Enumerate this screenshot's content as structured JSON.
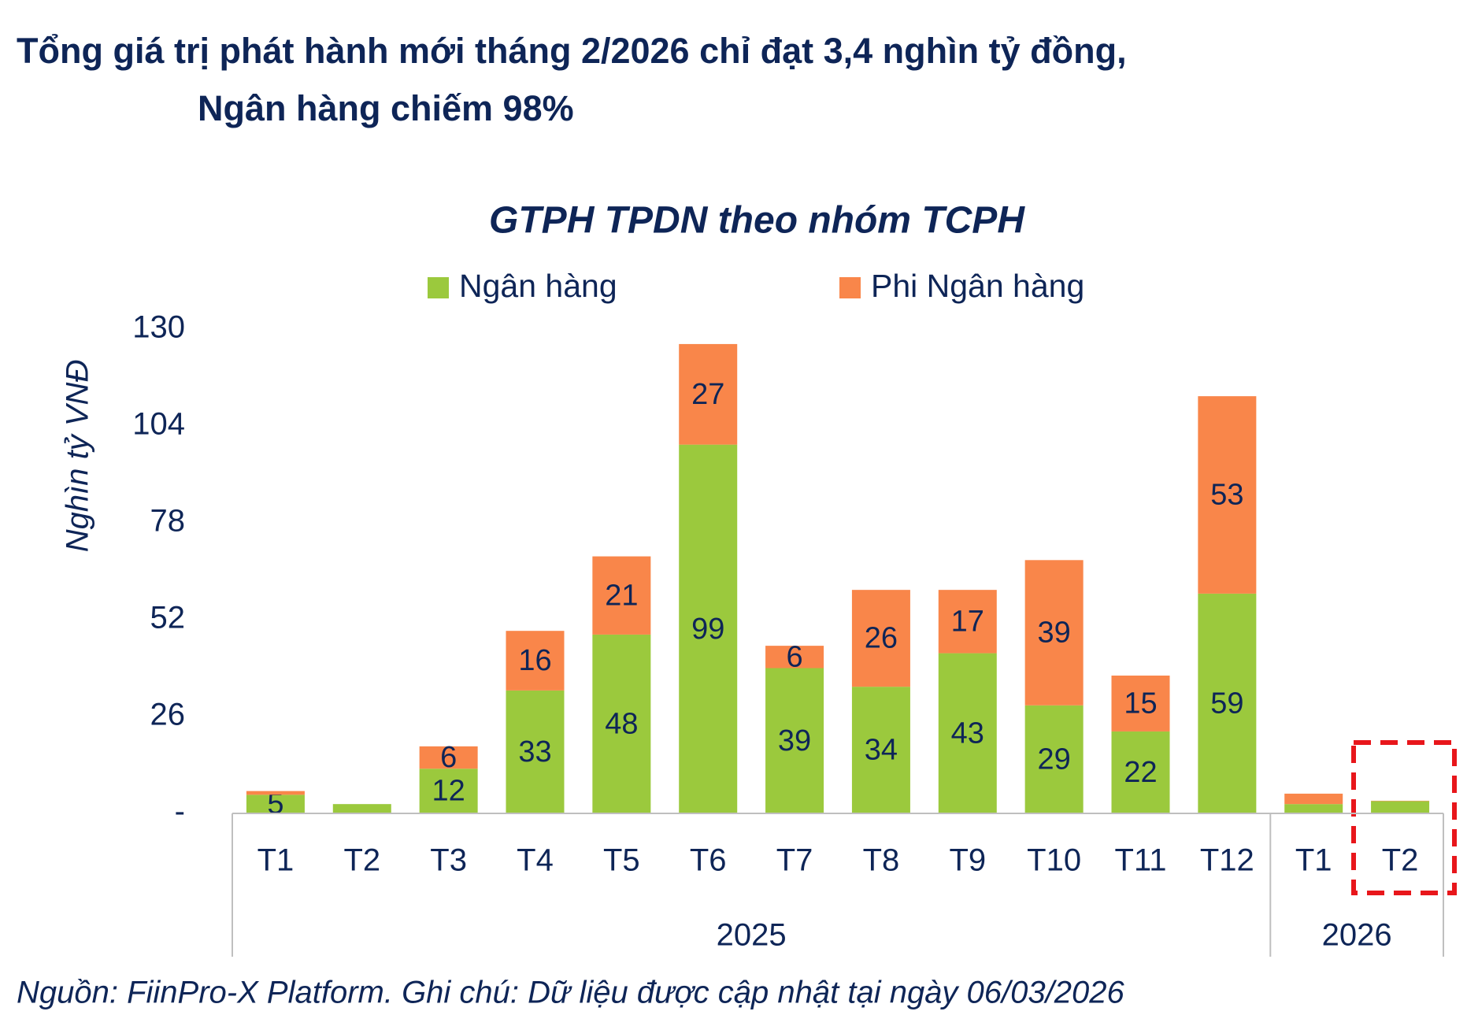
{
  "chart_data": {
    "type": "stacked_bar",
    "title": [
      "Tổng giá trị phát hành mới tháng 2/2026 chỉ đạt 3,4 nghìn tỷ đồng,",
      "Ngân hàng chiếm 98%"
    ],
    "subtitle": "GTPH TPDN theo nhóm TCPH",
    "y_label": "Nghìn tỷ VNĐ",
    "source": "Nguồn: FiinPro-X Platform. Ghi chú: Dữ liệu được cập nhật tại ngày 06/03/2026",
    "categories": [
      "T1",
      "T2",
      "T3",
      "T4",
      "T5",
      "T6",
      "T7",
      "T8",
      "T9",
      "T10",
      "T11",
      "T12",
      "T1",
      "T2"
    ],
    "groups": [
      {
        "label": "2025",
        "count": 12
      },
      {
        "label": "2026",
        "count": 2
      }
    ],
    "series": [
      {
        "name": "Ngân hàng",
        "color": "#9bc93d",
        "values": [
          5,
          2.5,
          12,
          33,
          48,
          99,
          39,
          34,
          43,
          29,
          22,
          59,
          2.5,
          3.3
        ],
        "value_labels": [
          "5",
          null,
          "12",
          "33",
          "48",
          "99",
          "39",
          "34",
          "43",
          "29",
          "22",
          "59",
          null,
          null
        ]
      },
      {
        "name": "Phi Ngân hàng",
        "color": "#f9864a",
        "values": [
          1,
          0,
          6,
          16,
          21,
          27,
          6,
          26,
          17,
          39,
          15,
          53,
          2.8,
          0.1
        ],
        "value_labels": [
          null,
          null,
          "6",
          "16",
          "21",
          "27",
          "6",
          "26",
          "17",
          "39",
          "15",
          "53",
          null,
          null
        ]
      }
    ],
    "ylim": [
      0,
      130
    ],
    "yticks": [
      {
        "value": 0,
        "label": "-"
      },
      26,
      52,
      78,
      104,
      130
    ],
    "grid": false,
    "legend": "top"
  }
}
